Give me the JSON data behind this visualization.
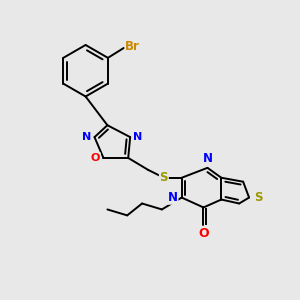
{
  "background_color": "#e8e8e8",
  "bond_color": "#000000",
  "atom_colors": {
    "N": "#0000ff",
    "O": "#ff0000",
    "S": "#999900",
    "Br": "#cc8800",
    "C": "#000000"
  },
  "figsize": [
    3.0,
    3.0
  ],
  "dpi": 100,
  "lw": 1.4
}
